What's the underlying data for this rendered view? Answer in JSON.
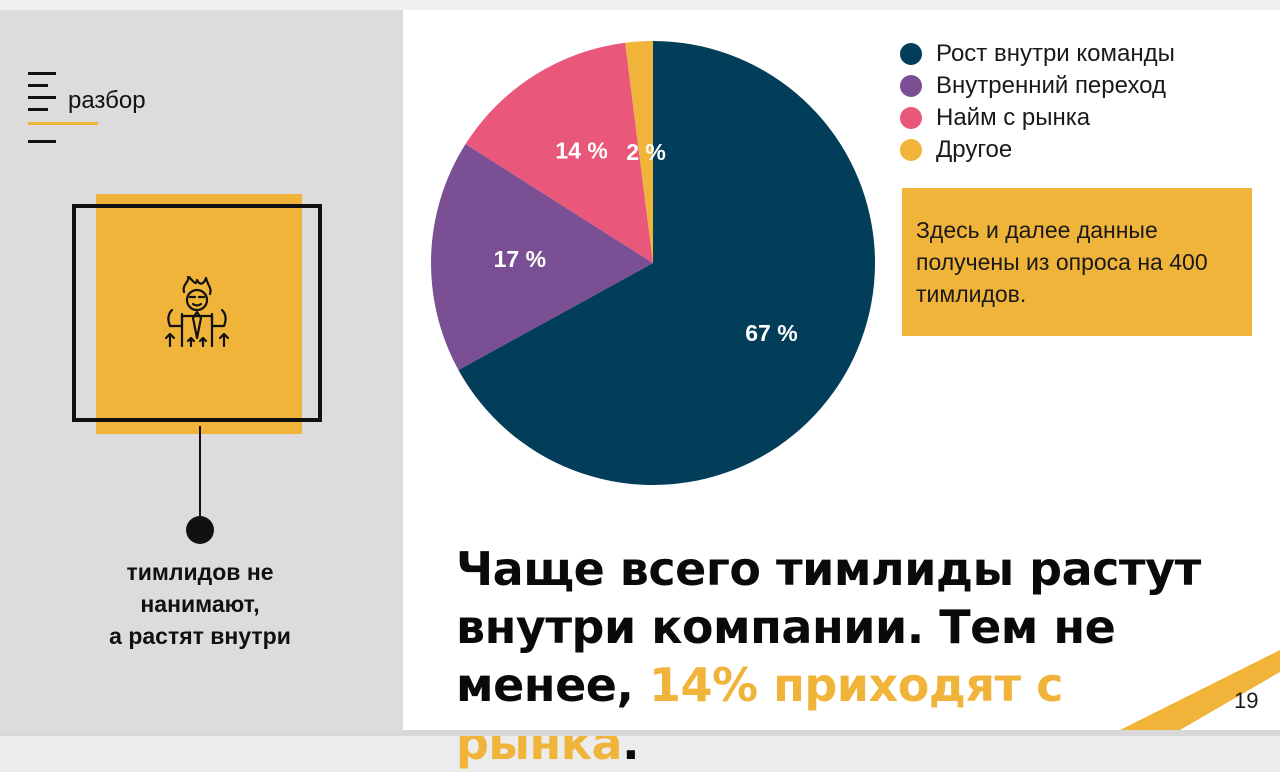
{
  "brand": {
    "label": "разбор"
  },
  "card": {
    "icon": "growing-leader-icon",
    "caption_lines": [
      "тимлидов не",
      "нанимают,",
      "а растят внутри"
    ]
  },
  "note": {
    "text": "Здесь и далее данные получены из опроса на 400 тимлидов."
  },
  "headline": {
    "part1": "Чаще всего тимлиды растут внутри компании. Тем не менее, ",
    "highlight": "14% приходят с рынка",
    "end": "."
  },
  "page_number": "19",
  "colors": {
    "navy": "#023d5a",
    "purple": "#7a4f93",
    "pink": "#e9587a",
    "yellow": "#f0b43a"
  },
  "chart_data": {
    "type": "pie",
    "categories": [
      "Рост внутри команды",
      "Внутренний переход",
      "Найм с рынка",
      "Другое"
    ],
    "values": [
      67,
      17,
      14,
      2
    ],
    "data_labels": [
      "67 %",
      "17 %",
      "14 %",
      "2 %"
    ],
    "colors": [
      "#023d5a",
      "#7a4f93",
      "#e9587a",
      "#f0b43a"
    ],
    "legend_position": "top-right"
  }
}
